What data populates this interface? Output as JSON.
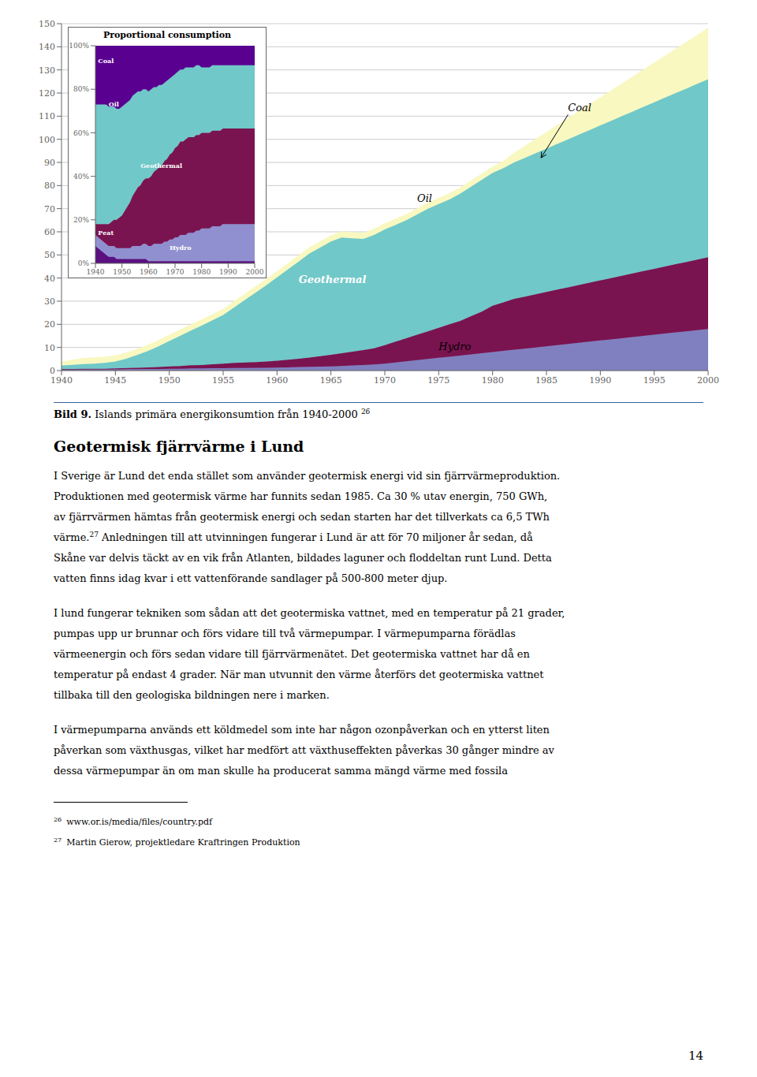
{
  "chart_data": [
    {
      "type": "area",
      "stacked": true,
      "x": [
        1940,
        1941,
        1942,
        1943,
        1944,
        1945,
        1946,
        1947,
        1948,
        1949,
        1950,
        1951,
        1952,
        1953,
        1954,
        1955,
        1956,
        1957,
        1958,
        1959,
        1960,
        1961,
        1962,
        1963,
        1964,
        1965,
        1966,
        1967,
        1968,
        1969,
        1970,
        1971,
        1972,
        1973,
        1974,
        1975,
        1976,
        1977,
        1978,
        1979,
        1980,
        1981,
        1982,
        1983,
        1984,
        1985,
        1986,
        1987,
        1988,
        1989,
        1990,
        1991,
        1992,
        1993,
        1994,
        1995,
        1996,
        1997,
        1998,
        1999,
        2000
      ],
      "series": [
        {
          "color": "#8080c0",
          "values": [
            0.5,
            0.5,
            0.5,
            0.5,
            0.5,
            0.5,
            0.6,
            0.6,
            0.7,
            0.7,
            0.8,
            0.8,
            0.9,
            0.9,
            1.0,
            1.0,
            1.1,
            1.1,
            1.2,
            1.2,
            1.3,
            1.4,
            1.5,
            1.6,
            1.7,
            1.8,
            2.0,
            2.2,
            2.4,
            2.6,
            3.0,
            3.5,
            4.0,
            4.5,
            5.0,
            5.5,
            6.0,
            6.5,
            7.0,
            7.5,
            8.0,
            8.5,
            9.0,
            9.5,
            10.0,
            10.5,
            11.0,
            11.5,
            12.0,
            12.5,
            13.0,
            13.5,
            14.0,
            14.5,
            15.0,
            15.5,
            16.0,
            16.5,
            17.0,
            17.5,
            18.0
          ]
        },
        {
          "color": "#7a1450",
          "values": [
            0.2,
            0.2,
            0.3,
            0.3,
            0.3,
            0.4,
            0.5,
            0.6,
            0.7,
            0.8,
            1.0,
            1.2,
            1.4,
            1.5,
            1.7,
            2.0,
            2.2,
            2.4,
            2.5,
            2.7,
            3.0,
            3.3,
            3.6,
            4.0,
            4.5,
            5.0,
            5.5,
            6.0,
            6.5,
            7.0,
            8.0,
            9.0,
            10.0,
            11.0,
            12.0,
            13.0,
            14.0,
            15.0,
            16.5,
            18.0,
            20.0,
            21.0,
            22.0,
            22.5,
            23.0,
            23.5,
            24.0,
            24.5,
            25.0,
            25.5,
            26.0,
            26.5,
            27.0,
            27.5,
            28.0,
            28.5,
            29.0,
            29.5,
            30.0,
            30.5,
            31.0
          ]
        },
        {
          "color": "#70c8c8",
          "values": [
            1.5,
            1.8,
            2.0,
            2.2,
            2.5,
            3.0,
            4.0,
            5.5,
            7.0,
            9.0,
            11.0,
            13.0,
            15.0,
            17.0,
            19.0,
            21.0,
            24.0,
            27.0,
            30.0,
            33.0,
            36.0,
            39.0,
            42.0,
            45.0,
            47.0,
            49.0,
            50.0,
            49.0,
            48.0,
            49.0,
            50.0,
            50.5,
            51.0,
            52.0,
            53.0,
            53.5,
            54.0,
            55.0,
            56.0,
            57.0,
            57.5,
            58.0,
            59.0,
            60.0,
            61.0,
            62.0,
            63.0,
            64.0,
            65.0,
            66.0,
            67.0,
            68.0,
            69.0,
            70.0,
            71.0,
            72.0,
            73.0,
            74.0,
            75.0,
            76.0,
            77.0
          ]
        },
        {
          "color": "#f8f8c0",
          "values": [
            1.5,
            2.0,
            2.5,
            2.5,
            2.5,
            2.5,
            2.5,
            2.5,
            2.5,
            2.5,
            2.5,
            2.5,
            2.5,
            2.5,
            2.5,
            2.5,
            2.5,
            2.5,
            2.5,
            2.5,
            2.5,
            2.5,
            2.5,
            2.5,
            2.5,
            2.5,
            2.5,
            2.5,
            2.5,
            2.5,
            2.5,
            2.5,
            2.5,
            2.5,
            2.5,
            2.5,
            2.5,
            2.5,
            2.5,
            2.5,
            2.5,
            3.0,
            4.0,
            5.0,
            6.0,
            7.0,
            8.0,
            9.0,
            10.0,
            11.0,
            12.0,
            13.0,
            14.0,
            15.0,
            16.0,
            17.0,
            18.0,
            19.0,
            20.0,
            21.0,
            22.0
          ]
        }
      ],
      "xlim": [
        1940,
        2000
      ],
      "xticks": [
        1940,
        1945,
        1950,
        1955,
        1960,
        1965,
        1970,
        1975,
        1980,
        1985,
        1990,
        1995,
        2000
      ],
      "ylim": [
        0,
        150
      ],
      "yticks": [
        0,
        10,
        20,
        30,
        40,
        50,
        60,
        70,
        80,
        90,
        100,
        110,
        120,
        130,
        140,
        150
      ],
      "grid": true,
      "annotations": [
        {
          "text": "Coal",
          "x": 1987,
          "y": 112,
          "color": "#000000",
          "arrow_to": [
            1984.5,
            92
          ]
        },
        {
          "text": "Oil",
          "x": 1973,
          "y": 73,
          "color": "#000000"
        },
        {
          "text": "Geothermal",
          "x": 1962,
          "y": 38,
          "color": "#ffffff"
        },
        {
          "text": "Hydro",
          "x": 1975,
          "y": 9,
          "color": "#000000"
        }
      ]
    },
    {
      "type": "area",
      "stacked": true,
      "title": "Proportional consumption",
      "x": [
        1940,
        1941,
        1942,
        1943,
        1944,
        1945,
        1946,
        1947,
        1948,
        1949,
        1950,
        1951,
        1952,
        1953,
        1954,
        1955,
        1956,
        1957,
        1958,
        1959,
        1960,
        1961,
        1962,
        1963,
        1964,
        1965,
        1966,
        1967,
        1968,
        1969,
        1970,
        1971,
        1972,
        1973,
        1974,
        1975,
        1976,
        1977,
        1978,
        1979,
        1980,
        1981,
        1982,
        1983,
        1984,
        1985,
        1986,
        1987,
        1988,
        1989,
        1990,
        1991,
        1992,
        1993,
        1994,
        1995,
        1996,
        1997,
        1998,
        1999,
        2000
      ],
      "series": [
        {
          "color": "#5a1080",
          "values": [
            8,
            7,
            6,
            5,
            4,
            3,
            3,
            3,
            2,
            2,
            2,
            2,
            2,
            2,
            2,
            2,
            2,
            2,
            2,
            2,
            1,
            1,
            1,
            1,
            1,
            1,
            1,
            1,
            1,
            1,
            1,
            1,
            1,
            1,
            1,
            1,
            1,
            1,
            1,
            1,
            1,
            1,
            1,
            1,
            1,
            1,
            1,
            1,
            1,
            1,
            1,
            1,
            1,
            1,
            1,
            1,
            1,
            1,
            1,
            1,
            1
          ]
        },
        {
          "color": "#9090d0",
          "values": [
            5,
            5,
            5,
            5,
            5,
            5,
            5,
            5,
            5,
            5,
            5,
            5,
            5,
            5,
            6,
            6,
            6,
            6,
            7,
            7,
            7,
            7,
            8,
            8,
            8,
            8,
            9,
            9,
            10,
            10,
            11,
            11,
            12,
            12,
            12,
            13,
            13,
            13,
            14,
            14,
            15,
            15,
            15,
            15,
            16,
            16,
            16,
            16,
            17,
            17,
            17,
            17,
            17,
            17,
            17,
            17,
            17,
            17,
            17,
            17,
            17
          ]
        },
        {
          "color": "#7a1450",
          "values": [
            5,
            6,
            7,
            8,
            9,
            10,
            11,
            12,
            13,
            14,
            15,
            17,
            19,
            21,
            23,
            25,
            27,
            28,
            29,
            30,
            31,
            32,
            33,
            34,
            35,
            36,
            37,
            38,
            39,
            40,
            41,
            42,
            43,
            43,
            44,
            44,
            44,
            44,
            44,
            44,
            44,
            44,
            44,
            44,
            44,
            44,
            44,
            44,
            44,
            44,
            44,
            44,
            44,
            44,
            44,
            44,
            44,
            44,
            44,
            44,
            44
          ]
        },
        {
          "color": "#70c8c8",
          "values": [
            55,
            55,
            55,
            55,
            55,
            54,
            53,
            52,
            51,
            50,
            50,
            49,
            48,
            47,
            46,
            45,
            44,
            43,
            42,
            41,
            40,
            40,
            39,
            38,
            38,
            37,
            36,
            36,
            35,
            35,
            34,
            34,
            33,
            33,
            33,
            32,
            32,
            32,
            32,
            32,
            30,
            30,
            30,
            30,
            30,
            30,
            30,
            30,
            29,
            29,
            29,
            29,
            29,
            29,
            29,
            29,
            29,
            29,
            29,
            29,
            29
          ]
        },
        {
          "color": "#5a0090",
          "values": [
            27,
            27,
            27,
            27,
            27,
            28,
            28,
            28,
            29,
            29,
            28,
            27,
            26,
            25,
            23,
            22,
            21,
            21,
            20,
            20,
            21,
            20,
            19,
            19,
            18,
            18,
            17,
            16,
            15,
            14,
            13,
            12,
            11,
            11,
            10,
            10,
            10,
            10,
            9,
            9,
            10,
            10,
            10,
            10,
            9,
            9,
            9,
            9,
            9,
            9,
            9,
            9,
            9,
            9,
            9,
            9,
            9,
            9,
            9,
            9,
            9
          ]
        }
      ],
      "xlim": [
        1940,
        2000
      ],
      "xticks": [
        1940,
        1950,
        1960,
        1970,
        1980,
        1990,
        2000
      ],
      "ylim": [
        0,
        100
      ],
      "yticks": [
        {
          "value": 0,
          "label": "0%"
        },
        {
          "value": 20,
          "label": "20%"
        },
        {
          "value": 40,
          "label": "40%"
        },
        {
          "value": 60,
          "label": "60%"
        },
        {
          "value": 80,
          "label": "80%"
        },
        {
          "value": 100,
          "label": "100%"
        }
      ],
      "grid": false,
      "annotations": [
        {
          "text": "Coal",
          "x": 1941,
          "y": 92,
          "color": "#ffffff"
        },
        {
          "text": "Oil",
          "x": 1945,
          "y": 72,
          "color": "#ffffff"
        },
        {
          "text": "Geothermal",
          "x": 1957,
          "y": 44,
          "color": "#ffffff"
        },
        {
          "text": "Peat",
          "x": 1941,
          "y": 13,
          "color": "#ffffff"
        },
        {
          "text": "Hydro",
          "x": 1968,
          "y": 6,
          "color": "#ffffff"
        }
      ]
    }
  ],
  "caption": {
    "label": "Bild 9.",
    "text": "Islands primära energikonsumtion från 1940-2000",
    "note": "26"
  },
  "heading": "Geotermisk fjärrvärme i Lund",
  "body": [
    [
      "I Sverige är Lund det enda stället som använder geotermisk energi vid sin fjärrvärmeproduktion.",
      "Produktionen med geotermisk värme har funnits sedan 1985. Ca 30 % utav energin, 750 GWh,",
      "av fjärrvärmen hämtas från geotermisk energi och sedan starten har det tillverkats ca 6,5 TWh",
      {
        "before": "värme.",
        "sup": "27",
        "after": "Anledningen till att utvinningen fungerar i Lund är att för 70 miljoner år sedan, då"
      },
      "Skåne var delvis täckt av en vik från Atlanten, bildades laguner och floddeltan runt Lund. Detta",
      "vatten finns idag kvar i ett vattenförande sandlager på 500-800 meter djup."
    ],
    [
      "I lund fungerar tekniken som sådan att det geotermiska vattnet, med en temperatur på 21 grader,",
      "pumpas upp ur brunnar och förs vidare till två värmepumpar. I värmepumparna förädlas",
      "värmeenergin och förs sedan vidare till fjärrvärmenätet. Det geotermiska vattnet har då en",
      "temperatur på endast 4 grader. När man utvunnit den värme återförs det geotermiska vattnet",
      "tillbaka till den geologiska bildningen nere i marken."
    ],
    [
      "I värmepumparna används ett köldmedel som inte har någon ozonpåverkan och en ytterst liten",
      "påverkan som växthusgas, vilket har medfört att växthuseffekten påverkas 30 gånger mindre av",
      "dessa värmepumpar än om man skulle ha producerat samma mängd värme med fossila"
    ]
  ],
  "footnotes": [
    {
      "mark": "26",
      "text": "www.or.is/media/files/country.pdf"
    },
    {
      "mark": "27",
      "text": "Martin Gierow, projektledare Kraftringen Produktion"
    }
  ],
  "page_number": "14"
}
